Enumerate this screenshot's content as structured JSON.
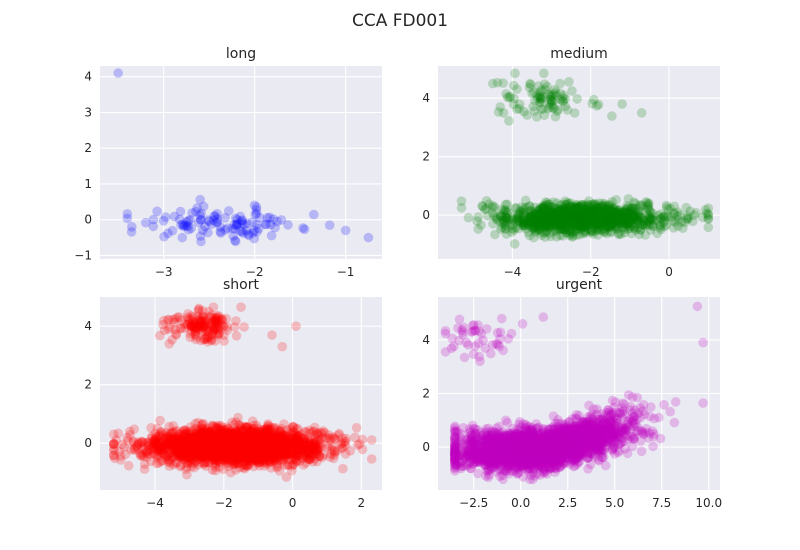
{
  "figure": {
    "title": "CCA FD001"
  },
  "chart_data": [
    {
      "type": "scatter",
      "title": "long",
      "xlabel": "",
      "ylabel": "",
      "xlim": [
        -3.7,
        -0.6
      ],
      "ylim": [
        -1.1,
        4.3
      ],
      "xticks": [
        -3,
        -2,
        -1
      ],
      "xtick_labels": [
        "−3",
        "−2",
        "−1"
      ],
      "yticks": [
        -1,
        0,
        1,
        2,
        3,
        4
      ],
      "ytick_labels": [
        "−1",
        "0",
        "1",
        "2",
        "3",
        "4"
      ],
      "grid": true,
      "color": "#0000ff",
      "alpha": 0.22,
      "clusters": [
        {
          "n": 110,
          "x_center": -2.35,
          "x_spread": 0.45,
          "x_range": [
            -3.4,
            -0.7
          ],
          "y_center": -0.1,
          "y_spread": 0.22,
          "y_range": [
            -0.8,
            0.6
          ]
        }
      ],
      "points": [
        [
          -3.5,
          4.1
        ],
        [
          -0.75,
          -0.5
        ],
        [
          -1.0,
          -0.3
        ],
        [
          -3.35,
          -0.2
        ]
      ]
    },
    {
      "type": "scatter",
      "title": "medium",
      "xlabel": "",
      "ylabel": "",
      "xlim": [
        -5.9,
        1.3
      ],
      "ylim": [
        -1.5,
        5.1
      ],
      "xticks": [
        -4,
        -2,
        0
      ],
      "xtick_labels": [
        "−4",
        "−2",
        "0"
      ],
      "yticks": [
        0,
        2,
        4
      ],
      "ytick_labels": [
        "0",
        "2",
        "4"
      ],
      "grid": true,
      "color": "#008000",
      "alpha": 0.22,
      "clusters": [
        {
          "n": 1200,
          "x_center": -2.2,
          "x_spread": 1.1,
          "x_range": [
            -5.3,
            1.0
          ],
          "y_center": -0.1,
          "y_spread": 0.25,
          "y_range": [
            -1.0,
            0.9
          ]
        },
        {
          "n": 90,
          "x_center": -3.2,
          "x_spread": 0.6,
          "x_range": [
            -4.5,
            -0.5
          ],
          "y_center": 3.95,
          "y_spread": 0.3,
          "y_range": [
            3.2,
            4.85
          ]
        }
      ],
      "points": [
        [
          -0.7,
          3.5
        ],
        [
          -1.2,
          3.8
        ],
        [
          -3.2,
          4.85
        ]
      ]
    },
    {
      "type": "scatter",
      "title": "short",
      "xlabel": "",
      "ylabel": "",
      "xlim": [
        -5.6,
        2.6
      ],
      "ylim": [
        -1.6,
        5.0
      ],
      "xticks": [
        -4,
        -2,
        0,
        2
      ],
      "xtick_labels": [
        "−4",
        "−2",
        "0",
        "2"
      ],
      "yticks": [
        0,
        2,
        4
      ],
      "ytick_labels": [
        "0",
        "2",
        "4"
      ],
      "grid": true,
      "color": "#ff0000",
      "alpha": 0.22,
      "clusters": [
        {
          "n": 2600,
          "x_center": -1.7,
          "x_spread": 1.25,
          "x_range": [
            -5.2,
            2.3
          ],
          "y_center": -0.1,
          "y_spread": 0.3,
          "y_range": [
            -1.3,
            1.0
          ]
        },
        {
          "n": 170,
          "x_center": -2.7,
          "x_spread": 0.5,
          "x_range": [
            -4.2,
            0.2
          ],
          "y_center": 4.0,
          "y_spread": 0.25,
          "y_range": [
            3.1,
            4.65
          ]
        }
      ],
      "points": [
        [
          0.1,
          4.0
        ],
        [
          -0.6,
          3.7
        ],
        [
          -1.5,
          4.65
        ],
        [
          -0.3,
          3.3
        ]
      ]
    },
    {
      "type": "scatter",
      "title": "urgent",
      "xlabel": "",
      "ylabel": "",
      "xlim": [
        -4.4,
        10.6
      ],
      "ylim": [
        -1.6,
        5.6
      ],
      "xticks": [
        -2.5,
        0.0,
        2.5,
        5.0,
        7.5,
        10.0
      ],
      "xtick_labels": [
        "−2.5",
        "0.0",
        "2.5",
        "5.0",
        "7.5",
        "10.0"
      ],
      "yticks": [
        0,
        2,
        4
      ],
      "ytick_labels": [
        "0",
        "2",
        "4"
      ],
      "grid": true,
      "color": "#bf00bf",
      "alpha": 0.22,
      "clusters": [
        {
          "n": 3000,
          "x_center": 1.2,
          "x_spread": 2.2,
          "x_range": [
            -3.5,
            9.7
          ],
          "y_center": -0.1,
          "y_spread": 0.35,
          "y_range": [
            -1.2,
            1.0
          ],
          "y_slope": 0.22
        },
        {
          "n": 45,
          "x_center": -2.2,
          "x_spread": 0.9,
          "x_range": [
            -4.0,
            0.1
          ],
          "y_center": 4.0,
          "y_spread": 0.35,
          "y_range": [
            3.2,
            4.8
          ]
        }
      ],
      "points": [
        [
          9.4,
          5.25
        ],
        [
          9.7,
          3.9
        ],
        [
          1.2,
          4.85
        ],
        [
          0.1,
          4.6
        ]
      ]
    }
  ]
}
